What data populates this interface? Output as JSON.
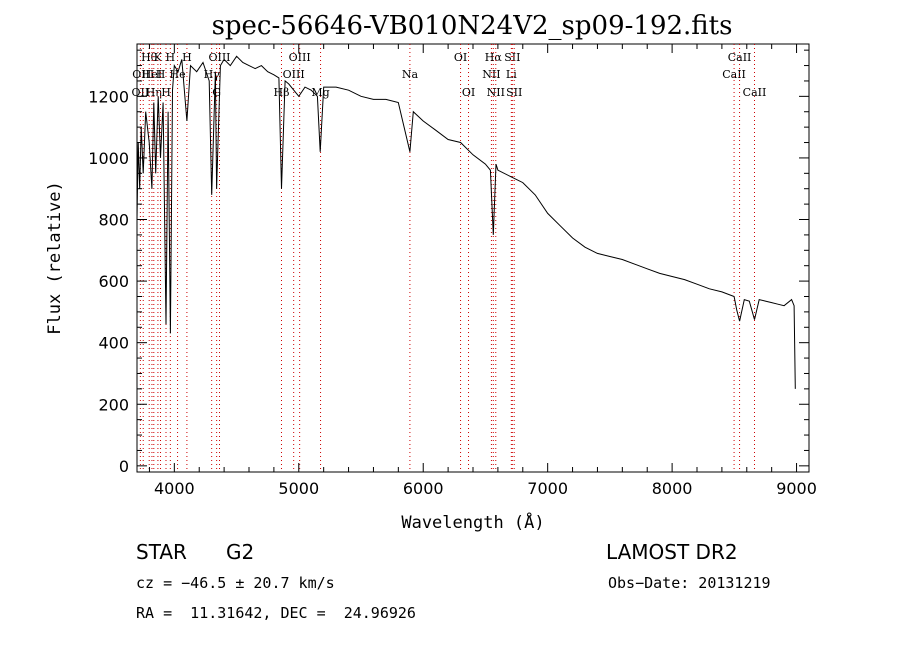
{
  "chart_data": {
    "type": "line",
    "title": "spec-56646-VB010N24V2_sp09-192.fits",
    "xlabel": "Wavelength (Å)",
    "ylabel": "Flux (relative)",
    "xlim": [
      3700,
      9100
    ],
    "ylim": [
      -20,
      1370
    ],
    "x_ticks": [
      4000,
      5000,
      6000,
      7000,
      8000,
      9000
    ],
    "x_tick_labels": [
      "4000",
      "5000",
      "6000",
      "7000",
      "8000",
      "9000"
    ],
    "y_ticks": [
      0,
      200,
      400,
      600,
      800,
      1000,
      1200
    ],
    "y_tick_labels": [
      "0",
      "200",
      "400",
      "600",
      "800",
      "1000",
      "1200"
    ],
    "series": [
      {
        "line_color": "#000000",
        "x": [
          3700,
          3710,
          3722,
          3734,
          3750,
          3770,
          3798,
          3820,
          3835,
          3850,
          3870,
          3889,
          3910,
          3933,
          3950,
          3968,
          3985,
          4000,
          4030,
          4060,
          4101,
          4130,
          4180,
          4230,
          4280,
          4300,
          4330,
          4340,
          4370,
          4400,
          4450,
          4500,
          4550,
          4600,
          4650,
          4700,
          4750,
          4800,
          4840,
          4861,
          4890,
          4920,
          4960,
          5000,
          5050,
          5100,
          5150,
          5172,
          5200,
          5300,
          5400,
          5500,
          5600,
          5700,
          5800,
          5893,
          5920,
          6000,
          6100,
          6200,
          6300,
          6400,
          6500,
          6540,
          6563,
          6585,
          6600,
          6700,
          6800,
          6900,
          7000,
          7100,
          7200,
          7300,
          7400,
          7500,
          7600,
          7700,
          7800,
          7900,
          8000,
          8100,
          8200,
          8300,
          8400,
          8498,
          8520,
          8542,
          8580,
          8620,
          8662,
          8700,
          8750,
          8800,
          8850,
          8900,
          8960,
          8980,
          8990
        ],
        "y": [
          800,
          1050,
          900,
          1100,
          950,
          1150,
          1050,
          900,
          1180,
          950,
          1200,
          1000,
          1180,
          460,
          1150,
          430,
          1220,
          1300,
          1280,
          1320,
          1120,
          1300,
          1280,
          1310,
          1250,
          880,
          1280,
          900,
          1300,
          1320,
          1300,
          1330,
          1310,
          1300,
          1290,
          1300,
          1280,
          1270,
          1260,
          900,
          1250,
          1240,
          1220,
          1200,
          1230,
          1220,
          1200,
          1020,
          1230,
          1230,
          1220,
          1200,
          1190,
          1190,
          1180,
          1020,
          1150,
          1120,
          1090,
          1060,
          1050,
          1010,
          980,
          960,
          750,
          980,
          960,
          940,
          920,
          880,
          820,
          780,
          740,
          710,
          690,
          680,
          670,
          655,
          640,
          625,
          615,
          605,
          590,
          575,
          565,
          550,
          505,
          470,
          540,
          535,
          475,
          540,
          535,
          530,
          525,
          520,
          540,
          520,
          250
        ]
      }
    ],
    "line_markers": [
      {
        "wavelength": 3727,
        "row": 2,
        "label": "OII"
      },
      {
        "wavelength": 3750,
        "row": 1,
        "label": "OIII"
      },
      {
        "wavelength": 3798,
        "row": 0,
        "label": "Hθ"
      },
      {
        "wavelength": 3820,
        "row": 1,
        "label": "HeI"
      },
      {
        "wavelength": 3835,
        "row": 2,
        "label": "Hη"
      },
      {
        "wavelength": 3868,
        "row": 0,
        "label": "K"
      },
      {
        "wavelength": 3889,
        "row": 1,
        "label": "H"
      },
      {
        "wavelength": 3933,
        "row": 2,
        "label": "H"
      },
      {
        "wavelength": 3968,
        "row": 0,
        "label": "H"
      },
      {
        "wavelength": 4026,
        "row": 1,
        "label": "He"
      },
      {
        "wavelength": 4101,
        "row": 0,
        "label": "H"
      },
      {
        "wavelength": 4300,
        "row": 1,
        "label": "Hγ"
      },
      {
        "wavelength": 4340,
        "row": 2,
        "label": "G"
      },
      {
        "wavelength": 4363,
        "row": 0,
        "label": "OIII"
      },
      {
        "wavelength": 4861,
        "row": 2,
        "label": "Hβ"
      },
      {
        "wavelength": 4959,
        "row": 1,
        "label": "OIII"
      },
      {
        "wavelength": 5007,
        "row": 0,
        "label": "OIII"
      },
      {
        "wavelength": 5175,
        "row": 2,
        "label": "Mg"
      },
      {
        "wavelength": 5893,
        "row": 1,
        "label": "Na"
      },
      {
        "wavelength": 6300,
        "row": 0,
        "label": "OI"
      },
      {
        "wavelength": 6364,
        "row": 2,
        "label": "OI"
      },
      {
        "wavelength": 6548,
        "row": 1,
        "label": "NII"
      },
      {
        "wavelength": 6563,
        "row": 0,
        "label": "Hα"
      },
      {
        "wavelength": 6583,
        "row": 2,
        "label": "NII"
      },
      {
        "wavelength": 6708,
        "row": 1,
        "label": "Li"
      },
      {
        "wavelength": 6716,
        "row": 0,
        "label": "SII"
      },
      {
        "wavelength": 6731,
        "row": 2,
        "label": "SII"
      },
      {
        "wavelength": 8498,
        "row": 1,
        "label": "CaII"
      },
      {
        "wavelength": 8542,
        "row": 0,
        "label": "CaII"
      },
      {
        "wavelength": 8662,
        "row": 2,
        "label": "CaII"
      }
    ],
    "marker_color": "#cc0000",
    "grid": false
  },
  "info": {
    "object_class": "STAR",
    "subclass": "G2",
    "survey": "LAMOST DR2",
    "cz": "cz = −46.5 ± 20.7 km/s",
    "obs_date": "Obs−Date: 20131219",
    "coords": "RA =  11.31642, DEC =  24.96926"
  }
}
